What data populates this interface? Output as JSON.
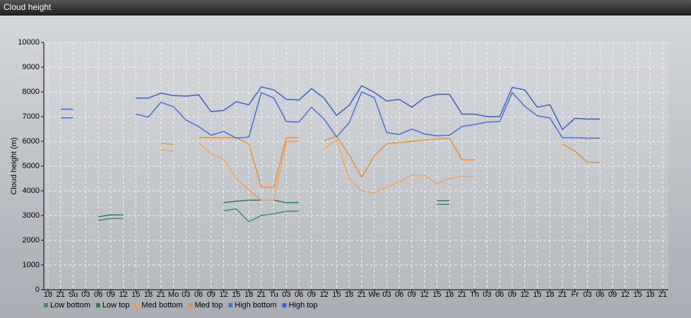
{
  "chart_data": {
    "type": "line",
    "title": "Cloud height",
    "y_label": "Cloud height (m)",
    "categories": [
      "18",
      "21",
      "Su",
      "03",
      "06",
      "09",
      "12",
      "15",
      "18",
      "21",
      "Mo",
      "03",
      "06",
      "09",
      "12",
      "15",
      "18",
      "21",
      "Tu",
      "03",
      "06",
      "09",
      "12",
      "15",
      "18",
      "21",
      "We",
      "03",
      "06",
      "09",
      "12",
      "15",
      "18",
      "21",
      "Th",
      "03",
      "06",
      "09",
      "12",
      "15",
      "18",
      "21",
      "Fr",
      "03",
      "06",
      "09",
      "12",
      "15",
      "18",
      "21"
    ],
    "ylim": [
      0,
      10000
    ],
    "yticks": [
      0,
      1000,
      2000,
      3000,
      4000,
      5000,
      6000,
      7000,
      8000,
      9000,
      10000
    ],
    "grid": true,
    "legend": "bottom-left",
    "series": [
      {
        "name": "Low bottom",
        "color": "#3f8f63",
        "values": [
          null,
          null,
          null,
          null,
          2800,
          2880,
          2880,
          null,
          null,
          null,
          null,
          null,
          null,
          null,
          3200,
          3270,
          2750,
          3000,
          3070,
          3170,
          3180,
          null,
          null,
          null,
          null,
          null,
          null,
          null,
          null,
          null,
          null,
          3450,
          3450,
          null,
          null,
          null,
          null,
          null,
          null,
          null,
          null,
          null,
          null,
          null,
          null,
          null,
          null,
          null,
          null,
          null
        ]
      },
      {
        "name": "Low top",
        "color": "#2e7d4f",
        "values": [
          null,
          null,
          null,
          null,
          2950,
          3030,
          3020,
          null,
          null,
          null,
          null,
          null,
          null,
          null,
          3520,
          3580,
          3620,
          3620,
          3620,
          3520,
          3530,
          null,
          null,
          null,
          null,
          null,
          null,
          null,
          null,
          null,
          null,
          3600,
          3600,
          null,
          null,
          null,
          null,
          null,
          null,
          null,
          null,
          null,
          null,
          null,
          null,
          null,
          null,
          null,
          null,
          null
        ]
      },
      {
        "name": "Med bottom",
        "color": "#f0a458",
        "values": [
          null,
          null,
          null,
          null,
          null,
          null,
          null,
          null,
          null,
          5650,
          5600,
          null,
          5950,
          5500,
          5270,
          4500,
          4050,
          3620,
          3620,
          5990,
          6000,
          null,
          5700,
          6050,
          4500,
          4000,
          3920,
          4150,
          4350,
          4650,
          4620,
          4300,
          4500,
          4580,
          4580,
          null,
          null,
          null,
          null,
          null,
          null,
          5900,
          5600,
          5150,
          5150,
          null,
          null,
          null,
          null,
          null
        ]
      },
      {
        "name": "Med top",
        "color": "#e8913a",
        "values": [
          null,
          null,
          null,
          null,
          null,
          null,
          null,
          null,
          null,
          5920,
          5870,
          null,
          6150,
          6150,
          6150,
          6150,
          5900,
          4150,
          4150,
          6150,
          6150,
          null,
          6030,
          6200,
          5450,
          4550,
          5400,
          5900,
          5950,
          6000,
          6050,
          6100,
          6130,
          5250,
          5250,
          null,
          null,
          null,
          null,
          null,
          null,
          5900,
          5600,
          5150,
          5150,
          null,
          null,
          null,
          null,
          null
        ]
      },
      {
        "name": "High bottom",
        "color": "#4a70d2",
        "values": [
          null,
          6950,
          6950,
          null,
          null,
          null,
          null,
          7100,
          6980,
          7580,
          7400,
          6860,
          6600,
          6250,
          6400,
          6130,
          6170,
          7970,
          7750,
          6800,
          6780,
          7380,
          6900,
          6180,
          6750,
          8000,
          7770,
          6350,
          6280,
          6500,
          6300,
          6220,
          6250,
          6600,
          6680,
          6780,
          6800,
          7970,
          7420,
          7030,
          6950,
          6150,
          6150,
          6130,
          6130,
          null,
          null,
          null,
          null,
          null
        ]
      },
      {
        "name": "High top",
        "color": "#3d62c8",
        "values": [
          null,
          7300,
          7300,
          null,
          null,
          null,
          null,
          7750,
          7750,
          7950,
          7850,
          7830,
          7880,
          7200,
          7250,
          7600,
          7480,
          8200,
          8080,
          7700,
          7670,
          8130,
          7750,
          7050,
          7450,
          8250,
          7980,
          7630,
          7700,
          7380,
          7760,
          7900,
          7900,
          7100,
          7100,
          7000,
          7000,
          8180,
          8080,
          7380,
          7480,
          6480,
          6930,
          6900,
          6900,
          null,
          null,
          null,
          null,
          null
        ]
      }
    ]
  }
}
